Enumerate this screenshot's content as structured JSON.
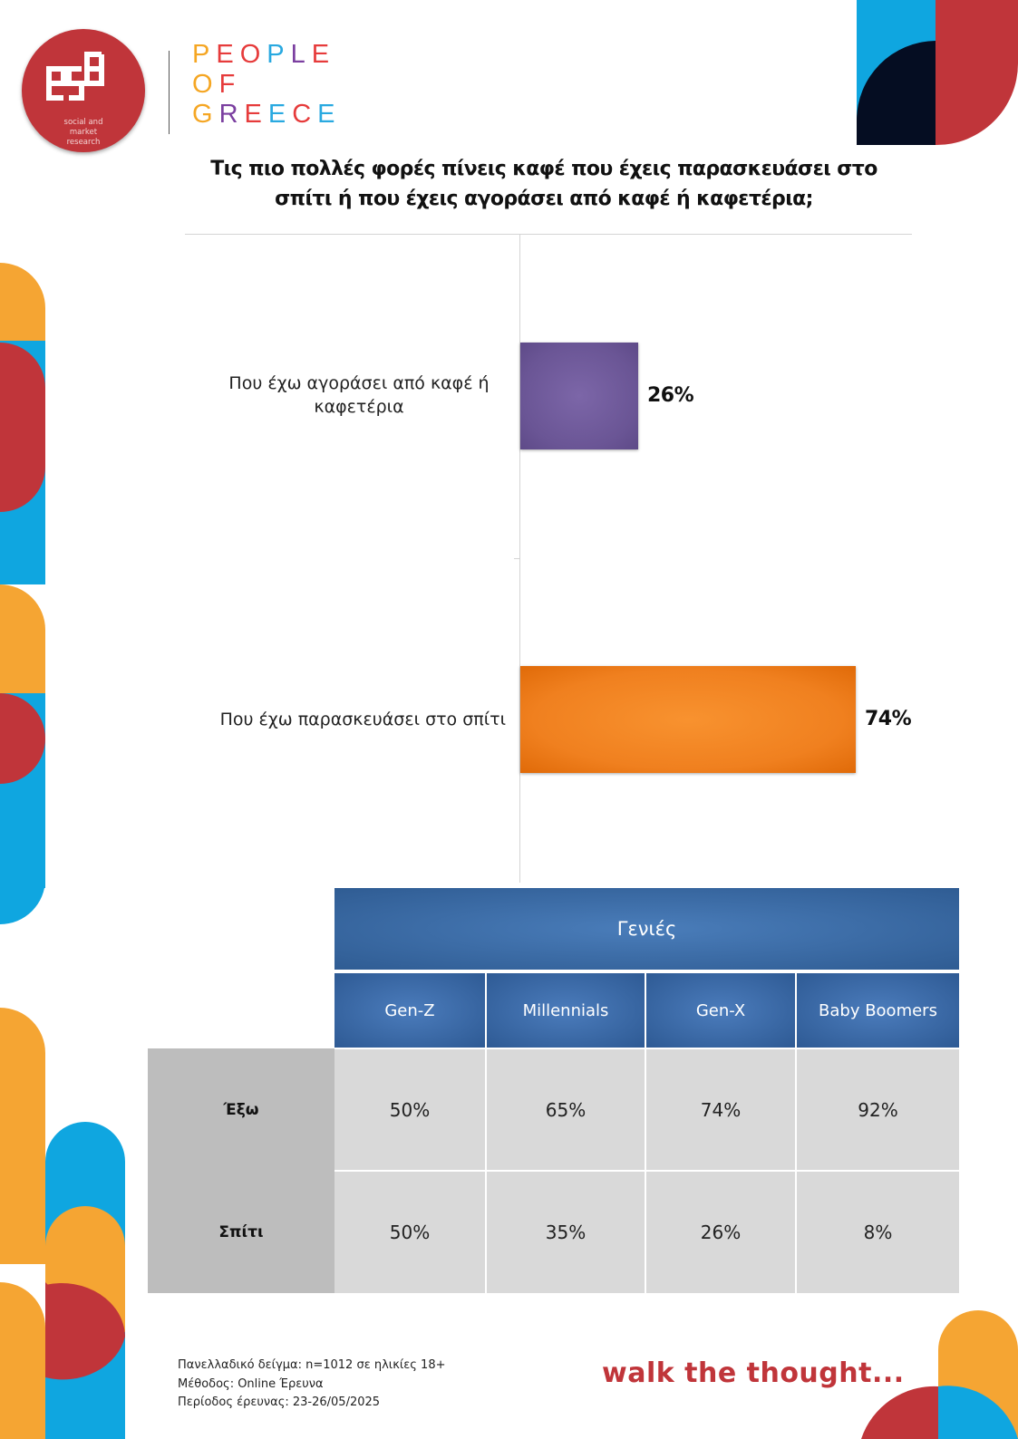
{
  "brand": {
    "logo_text": "social and market research",
    "logo_letters": "gsd",
    "people_of_greece_lines": [
      "PEOPLE",
      "OF",
      "GREECE"
    ],
    "people_colors": [
      "#f5a623",
      "#e63b3b",
      "#e63b3b",
      "#29a9e0",
      "#7b3fa0",
      "#e63b3b"
    ],
    "of_colors": [
      "#f5a623",
      "#e63b3b"
    ],
    "greece_colors": [
      "#f5a623",
      "#7b3fa0",
      "#e63b3b",
      "#29a9e0",
      "#e63b3b",
      "#29a9e0"
    ]
  },
  "colors": {
    "red": "#c0353a",
    "orange": "#f5a533",
    "blue": "#0fa6e0",
    "navy": "#050d22",
    "bar_purple": "#6a5595",
    "bar_orange": "#f0801f",
    "table_blue": "#3a6aa6"
  },
  "title": "Τις πιο πολλές φορές πίνεις καφέ που έχεις παρασκευάσει στο σπίτι ή που έχεις αγοράσει από καφέ ή καφετέρια;",
  "chart_data": {
    "type": "bar",
    "orientation": "horizontal",
    "categories": [
      "Που έχω αγοράσει από καφέ ή καφετέρια",
      "Που έχω παρασκευάσει στο σπίτι"
    ],
    "values": [
      26,
      74
    ],
    "value_labels": [
      "26%",
      "74%"
    ],
    "xlim": [
      0,
      100
    ],
    "grid": false,
    "title": "Τις πιο πολλές φορές πίνεις καφέ που έχεις παρασκευάσει στο σπίτι ή που έχεις αγοράσει από καφέ ή καφετέρια;"
  },
  "table": {
    "group_header": "Γενιές",
    "columns": [
      "Gen-Z",
      "Millennials",
      "Gen-X",
      "Baby Boomers"
    ],
    "rows": [
      {
        "label": "Έξω",
        "values": [
          "50%",
          "65%",
          "74%",
          "92%"
        ]
      },
      {
        "label": "Σπίτι",
        "values": [
          "50%",
          "35%",
          "26%",
          "8%"
        ]
      }
    ]
  },
  "footer": {
    "sample": "Πανελλαδικό δείγμα: n=1012 σε ηλικίες 18+",
    "method": "Μέθοδος: Online Έρευνα",
    "period": "Περίοδος έρευνας:  23-26/05/2025",
    "slogan": "walk the thought..."
  }
}
